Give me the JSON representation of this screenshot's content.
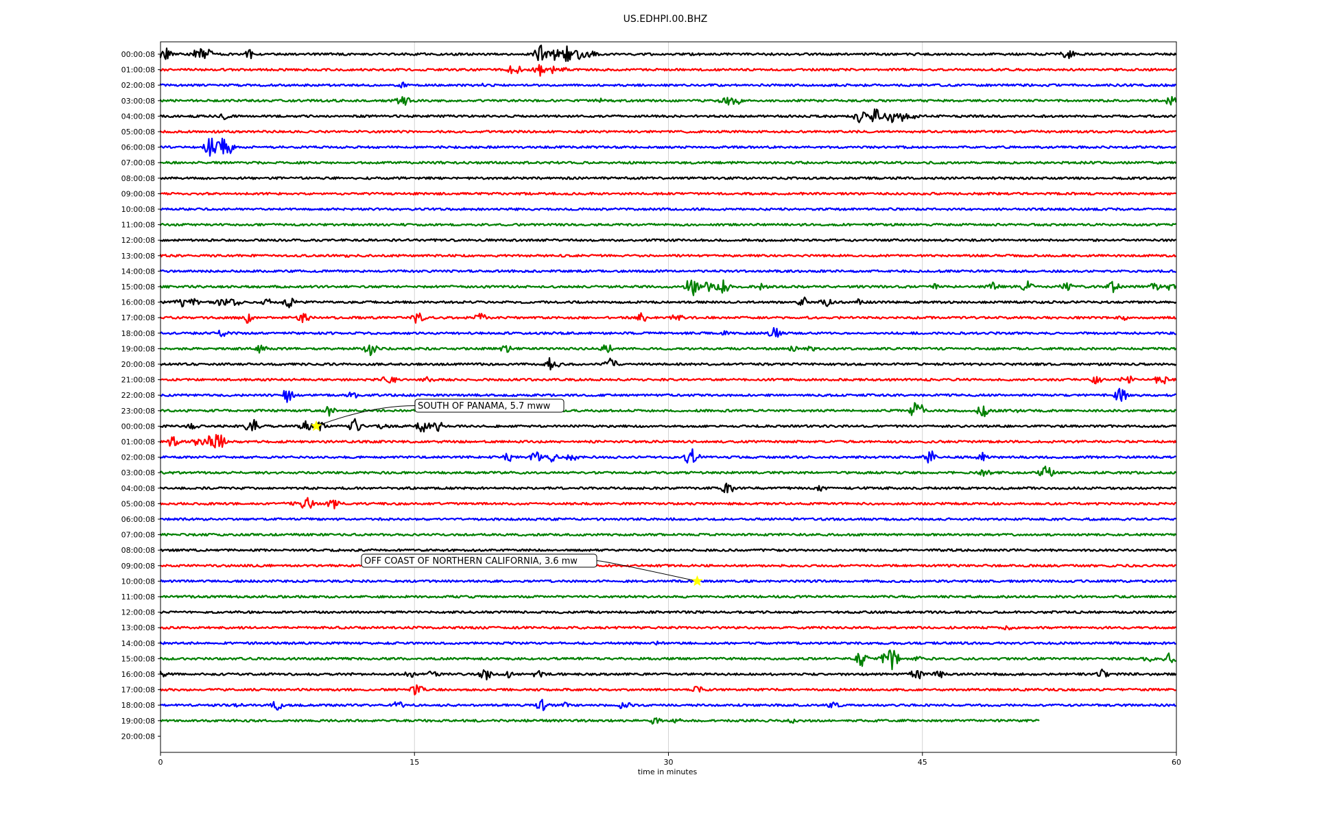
{
  "chart_data": {
    "type": "line",
    "title": "US.EDHPI.00.BHZ",
    "xlabel": "time in minutes",
    "ylabel": "",
    "xlim": [
      0,
      60
    ],
    "xticks": [
      "0",
      "15",
      "30",
      "45",
      "60"
    ],
    "grid": "vertical",
    "color_cycle": [
      "#000000",
      "#ff0000",
      "#0000ff",
      "#008000"
    ],
    "row_labels": [
      "00:00:08",
      "01:00:08",
      "02:00:08",
      "03:00:08",
      "04:00:08",
      "05:00:08",
      "06:00:08",
      "07:00:08",
      "08:00:08",
      "09:00:08",
      "10:00:08",
      "11:00:08",
      "12:00:08",
      "13:00:08",
      "14:00:08",
      "15:00:08",
      "16:00:08",
      "17:00:08",
      "18:00:08",
      "19:00:08",
      "20:00:08",
      "21:00:08",
      "22:00:08",
      "23:00:08",
      "00:00:08",
      "01:00:08",
      "02:00:08",
      "03:00:08",
      "04:00:08",
      "05:00:08",
      "06:00:08",
      "07:00:08",
      "08:00:08",
      "09:00:08",
      "10:00:08",
      "11:00:08",
      "12:00:08",
      "13:00:08",
      "14:00:08",
      "15:00:08",
      "16:00:08",
      "17:00:08",
      "18:00:08",
      "19:00:08",
      "20:00:08"
    ],
    "traces": [
      {
        "row": 0,
        "end": 60,
        "events": [
          [
            0.3,
            12
          ],
          [
            2.3,
            -15
          ],
          [
            2.8,
            8
          ],
          [
            5.3,
            7
          ],
          [
            22.4,
            18
          ],
          [
            23.2,
            -12
          ],
          [
            24.1,
            14
          ],
          [
            24.8,
            9
          ],
          [
            25.5,
            6
          ],
          [
            53.6,
            9
          ]
        ]
      },
      {
        "row": 1,
        "end": 60,
        "events": [
          [
            20.9,
            -10
          ],
          [
            22.4,
            10
          ],
          [
            23.1,
            6
          ],
          [
            24.0,
            4
          ]
        ]
      },
      {
        "row": 2,
        "end": 60,
        "events": [
          [
            14.3,
            5
          ],
          [
            19.0,
            3
          ]
        ]
      },
      {
        "row": 3,
        "end": 60,
        "events": [
          [
            14.3,
            -10
          ],
          [
            26.0,
            4
          ],
          [
            33.4,
            -8
          ],
          [
            34.0,
            7
          ],
          [
            59.7,
            10
          ]
        ]
      },
      {
        "row": 4,
        "end": 60,
        "events": [
          [
            3.8,
            5
          ],
          [
            41.3,
            10
          ],
          [
            42.2,
            -12
          ],
          [
            43.1,
            11
          ],
          [
            43.8,
            8
          ],
          [
            44.5,
            4
          ]
        ]
      },
      {
        "row": 5,
        "end": 60,
        "events": [
          [
            51.9,
            3
          ]
        ]
      },
      {
        "row": 6,
        "end": 60,
        "events": [
          [
            3.0,
            16
          ],
          [
            3.3,
            -12
          ],
          [
            3.7,
            14
          ],
          [
            3.9,
            -16
          ]
        ]
      },
      {
        "row": 7,
        "end": 60,
        "events": []
      },
      {
        "row": 8,
        "end": 60,
        "events": []
      },
      {
        "row": 9,
        "end": 60,
        "events": []
      },
      {
        "row": 10,
        "end": 60,
        "events": []
      },
      {
        "row": 11,
        "end": 60,
        "events": []
      },
      {
        "row": 12,
        "end": 60,
        "events": []
      },
      {
        "row": 13,
        "end": 60,
        "events": [
          [
            11.1,
            3
          ]
        ]
      },
      {
        "row": 14,
        "end": 60,
        "events": []
      },
      {
        "row": 15,
        "end": 60,
        "events": [
          [
            31.4,
            16
          ],
          [
            32.3,
            8
          ],
          [
            33.2,
            12
          ],
          [
            35.5,
            7
          ],
          [
            45.8,
            5
          ],
          [
            49.2,
            7
          ],
          [
            51.2,
            9
          ],
          [
            53.5,
            8
          ],
          [
            56.3,
            9
          ],
          [
            58.7,
            7
          ],
          [
            59.6,
            6
          ]
        ]
      },
      {
        "row": 16,
        "end": 60,
        "events": [
          [
            1.2,
            8
          ],
          [
            2.0,
            6
          ],
          [
            3.6,
            9
          ],
          [
            4.4,
            7
          ],
          [
            6.3,
            6
          ],
          [
            7.6,
            8
          ],
          [
            38.0,
            8
          ],
          [
            39.3,
            -8
          ],
          [
            41.2,
            5
          ]
        ]
      },
      {
        "row": 17,
        "end": 60,
        "events": [
          [
            5.1,
            10
          ],
          [
            8.4,
            12
          ],
          [
            15.2,
            10
          ],
          [
            18.9,
            7
          ],
          [
            28.5,
            9
          ],
          [
            30.5,
            7
          ],
          [
            56.9,
            4
          ]
        ]
      },
      {
        "row": 18,
        "end": 60,
        "events": [
          [
            3.7,
            7
          ],
          [
            33.4,
            4
          ],
          [
            36.3,
            9
          ]
        ]
      },
      {
        "row": 19,
        "end": 60,
        "events": [
          [
            5.9,
            7
          ],
          [
            12.4,
            10
          ],
          [
            20.4,
            6
          ],
          [
            26.3,
            9
          ],
          [
            37.4,
            5
          ],
          [
            38.4,
            5
          ]
        ]
      },
      {
        "row": 20,
        "end": 60,
        "events": [
          [
            23.1,
            -14
          ],
          [
            26.6,
            -10
          ]
        ]
      },
      {
        "row": 21,
        "end": 60,
        "events": [
          [
            13.5,
            10
          ],
          [
            15.8,
            6
          ],
          [
            55.3,
            7
          ],
          [
            57.1,
            8
          ],
          [
            59.1,
            9
          ]
        ]
      },
      {
        "row": 22,
        "end": 60,
        "events": [
          [
            7.5,
            -11
          ],
          [
            11.4,
            7
          ],
          [
            56.7,
            -12
          ]
        ]
      },
      {
        "row": 23,
        "end": 60,
        "events": [
          [
            9.9,
            -9
          ],
          [
            44.7,
            -16
          ],
          [
            48.6,
            -11
          ],
          [
            50.4,
            5
          ]
        ]
      },
      {
        "row": 24,
        "end": 60,
        "events": [
          [
            1.9,
            6
          ],
          [
            5.4,
            -14
          ],
          [
            8.6,
            8
          ],
          [
            9.4,
            7
          ],
          [
            11.5,
            -11
          ],
          [
            13.2,
            6
          ],
          [
            15.5,
            -11
          ],
          [
            16.4,
            8
          ]
        ]
      },
      {
        "row": 25,
        "end": 60,
        "events": [
          [
            0.7,
            10
          ],
          [
            2.3,
            9
          ],
          [
            3.0,
            -13
          ],
          [
            3.4,
            -16
          ]
        ]
      },
      {
        "row": 26,
        "end": 60,
        "events": [
          [
            20.6,
            -9
          ],
          [
            22.2,
            -10
          ],
          [
            23.1,
            7
          ],
          [
            24.3,
            8
          ],
          [
            31.4,
            -16
          ],
          [
            45.5,
            -12
          ],
          [
            48.6,
            9
          ]
        ]
      },
      {
        "row": 27,
        "end": 60,
        "events": [
          [
            48.7,
            6
          ],
          [
            52.3,
            -12
          ]
        ]
      },
      {
        "row": 28,
        "end": 60,
        "events": [
          [
            33.5,
            -10
          ],
          [
            39.0,
            -5
          ]
        ]
      },
      {
        "row": 29,
        "end": 60,
        "events": [
          [
            7.6,
            6
          ],
          [
            8.6,
            13
          ],
          [
            10.2,
            9
          ]
        ]
      },
      {
        "row": 30,
        "end": 60,
        "events": []
      },
      {
        "row": 31,
        "end": 60,
        "events": []
      },
      {
        "row": 32,
        "end": 60,
        "events": []
      },
      {
        "row": 33,
        "end": 60,
        "events": []
      },
      {
        "row": 34,
        "end": 60,
        "events": []
      },
      {
        "row": 35,
        "end": 60,
        "events": []
      },
      {
        "row": 36,
        "end": 60,
        "events": []
      },
      {
        "row": 37,
        "end": 60,
        "events": [
          [
            50.0,
            4
          ]
        ]
      },
      {
        "row": 38,
        "end": 60,
        "events": [
          [
            29.4,
            3
          ]
        ]
      },
      {
        "row": 39,
        "end": 60,
        "events": [
          [
            41.4,
            -12
          ],
          [
            42.8,
            9
          ],
          [
            43.2,
            16
          ],
          [
            44.6,
            5
          ],
          [
            58.3,
            6
          ],
          [
            59.6,
            10
          ]
        ]
      },
      {
        "row": 40,
        "end": 60,
        "events": [
          [
            0.1,
            -7
          ],
          [
            14.8,
            7
          ],
          [
            16.1,
            6
          ],
          [
            19.2,
            -9
          ],
          [
            20.5,
            -6
          ],
          [
            22.3,
            -6
          ],
          [
            44.7,
            -10
          ],
          [
            46.0,
            -7
          ],
          [
            55.7,
            -9
          ]
        ]
      },
      {
        "row": 41,
        "end": 60,
        "events": [
          [
            15.2,
            -12
          ],
          [
            31.7,
            6
          ]
        ]
      },
      {
        "row": 42,
        "end": 60,
        "events": [
          [
            4.6,
            4
          ],
          [
            6.9,
            8
          ],
          [
            14.0,
            7
          ],
          [
            22.5,
            -10
          ],
          [
            23.9,
            5
          ],
          [
            27.4,
            8
          ],
          [
            39.8,
            8
          ]
        ]
      },
      {
        "row": 43,
        "end": 51.9,
        "events": [
          [
            29.2,
            -7
          ],
          [
            30.6,
            5
          ],
          [
            37.3,
            4
          ]
        ]
      }
    ],
    "annotations": [
      {
        "text": "SOUTH OF PANAMA, 5.7 mww",
        "row": 24,
        "x": 9.2
      },
      {
        "text": "OFF COAST OF NORTHERN CALIFORNIA, 3.6 mw",
        "row": 34,
        "x": 31.7
      }
    ]
  }
}
